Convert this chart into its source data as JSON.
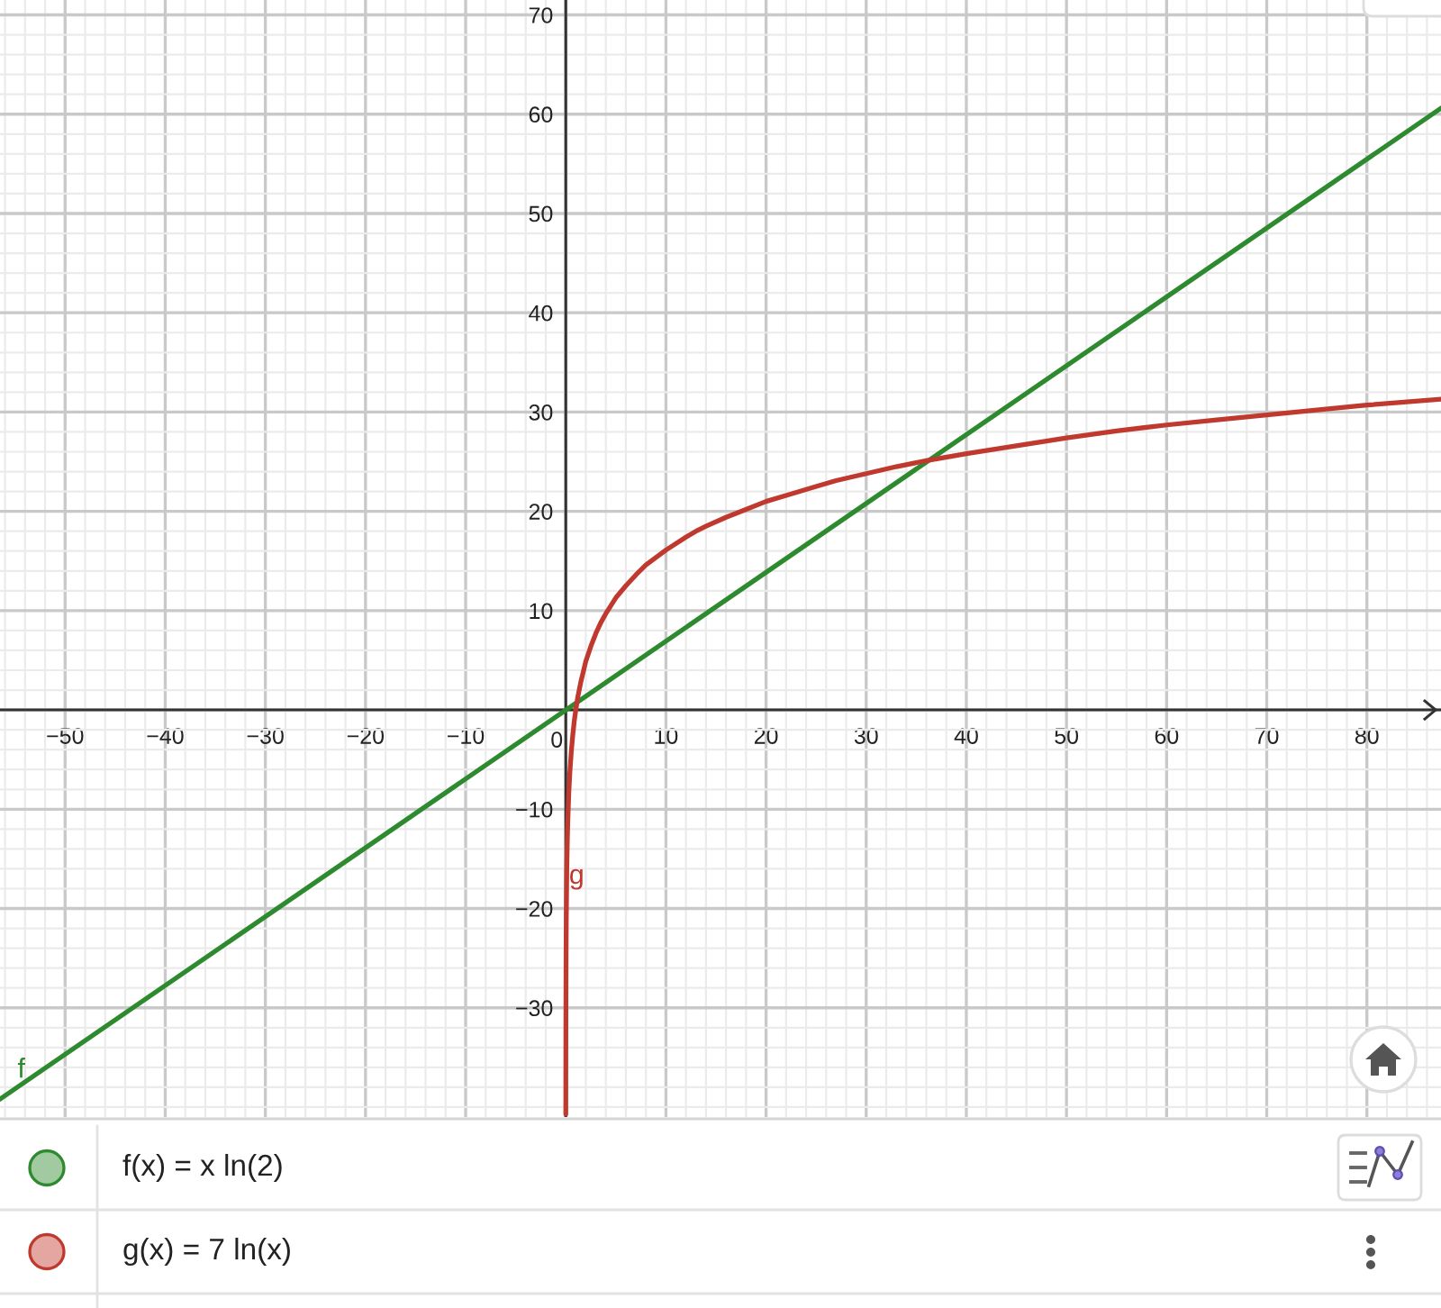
{
  "chart_data": {
    "type": "line",
    "xlim": [
      -56.5,
      87.4
    ],
    "ylim": [
      -41,
      71.5
    ],
    "xticks": [
      -50,
      -40,
      -30,
      -20,
      -10,
      0,
      10,
      20,
      30,
      40,
      50,
      60,
      70,
      80
    ],
    "yticks": [
      -30,
      -20,
      -10,
      10,
      20,
      30,
      40,
      50,
      60,
      70
    ],
    "grid": true,
    "legend": "bottom",
    "series": [
      {
        "name": "f(x) = x ln(2)",
        "color": "#2e8a2e",
        "x": [
          -56.5,
          87.4
        ],
        "values": [
          -39.2,
          60.6
        ]
      },
      {
        "name": "g(x) = 7 ln(x)",
        "color": "#c0392f",
        "x": [
          0.003,
          0.005,
          0.01,
          0.02,
          0.03,
          0.05,
          0.1,
          0.15,
          0.2,
          0.3,
          0.4,
          0.55,
          0.7,
          0.85,
          1,
          1.2,
          1.5,
          2,
          2.5,
          3,
          3.5,
          4,
          5,
          6,
          7,
          8,
          10,
          12,
          13,
          14,
          16,
          18,
          20,
          22,
          25,
          27,
          30,
          33,
          36,
          40,
          45,
          50,
          55,
          60,
          65,
          70,
          75,
          80,
          87.4
        ],
        "values": [
          -40.7,
          -37.1,
          -32.2,
          -27.4,
          -24.5,
          -21.0,
          -16.1,
          -13.3,
          -11.3,
          -8.4,
          -6.4,
          -4.2,
          -2.5,
          -1.1,
          0,
          1.3,
          2.8,
          4.9,
          6.4,
          7.7,
          8.8,
          9.7,
          11.3,
          12.5,
          13.6,
          14.6,
          16.1,
          17.4,
          18.0,
          18.5,
          19.4,
          20.2,
          21.0,
          21.6,
          22.5,
          23.1,
          23.8,
          24.5,
          25.1,
          25.8,
          26.6,
          27.4,
          28.1,
          28.7,
          29.2,
          29.7,
          30.2,
          30.7,
          31.3
        ]
      }
    ],
    "annotations": [
      {
        "text": "f",
        "x": -55,
        "y": -38.1
      },
      {
        "text": "g",
        "x": 0.07,
        "y": -18.6
      }
    ]
  }
}
